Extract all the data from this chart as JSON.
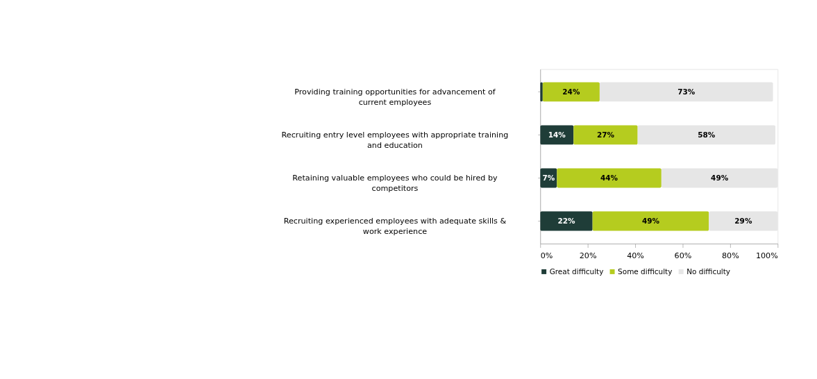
{
  "chart_data": {
    "type": "bar",
    "orientation": "horizontal",
    "stacked": true,
    "categories": [
      "Providing training opportunities for advancement of current employees",
      "Recruiting entry level employees with appropriate training and education",
      "Retaining valuable employees who could be hired by competitors",
      "Recruiting experienced employees with adequate skills & work experience"
    ],
    "series": [
      {
        "name": "Great difficulty",
        "color": "#1f3d38",
        "values": [
          1,
          14,
          7,
          22
        ],
        "value_labels": [
          null,
          "14%",
          "7%",
          "22%"
        ]
      },
      {
        "name": "Some difficulty",
        "color": "#b5cc1f",
        "values": [
          24,
          27,
          44,
          49
        ],
        "value_labels": [
          "24%",
          "27%",
          "44%",
          "49%"
        ]
      },
      {
        "name": "No difficulty",
        "color": "#e6e6e6",
        "values": [
          73,
          58,
          49,
          29
        ],
        "value_labels": [
          "73%",
          "58%",
          "49%",
          "29%"
        ]
      }
    ],
    "xlim": [
      0,
      100
    ],
    "xticks": [
      {
        "value": 0,
        "label": "0%"
      },
      {
        "value": 20,
        "label": "20%"
      },
      {
        "value": 40,
        "label": "40%"
      },
      {
        "value": 60,
        "label": "60%"
      },
      {
        "value": 80,
        "label": "80%"
      },
      {
        "value": 100,
        "label": "100%"
      }
    ],
    "legend": "bottom",
    "grid": false
  }
}
